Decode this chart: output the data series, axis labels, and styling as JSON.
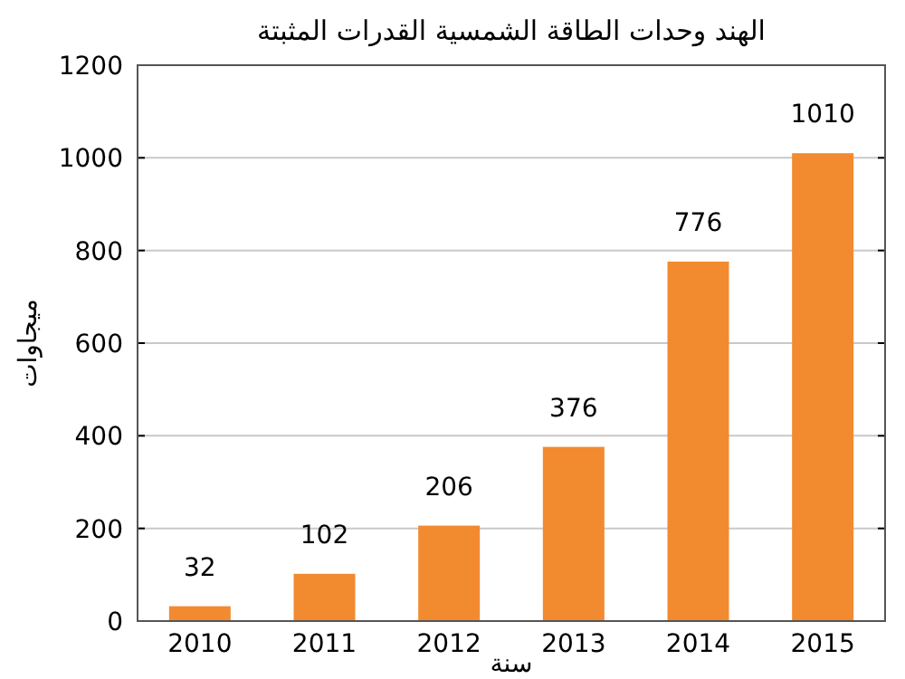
{
  "chart_data": {
    "type": "bar",
    "title": "الهند وحدات الطاقة الشمسية القدرات المثبتة",
    "xlabel": "سنة",
    "ylabel": "ميجاوات",
    "categories": [
      "2010",
      "2011",
      "2012",
      "2013",
      "2014",
      "2015"
    ],
    "values": [
      32,
      102,
      206,
      376,
      776,
      1010
    ],
    "color": "#f28a30",
    "ylim": [
      0,
      1200
    ],
    "yticks": [
      0,
      200,
      400,
      600,
      800,
      1000,
      1200
    ],
    "grid": "y",
    "data_labels": true
  }
}
